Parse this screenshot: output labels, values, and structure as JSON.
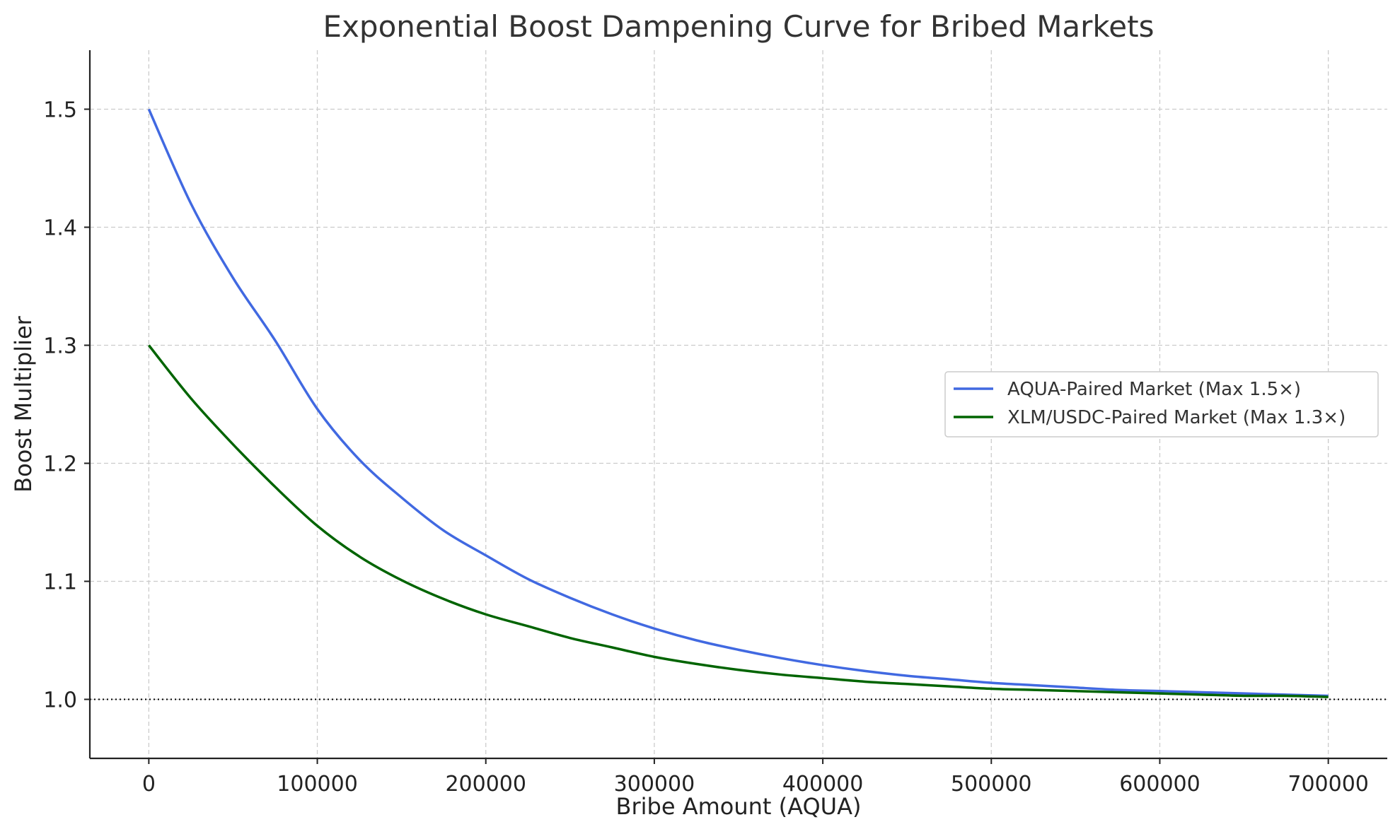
{
  "chart_data": {
    "type": "line",
    "title": "Exponential Boost Dampening Curve for Bribed Markets",
    "xlabel": "Bribe Amount (AQUA)",
    "ylabel": "Boost Multiplier",
    "xlim": [
      -35000,
      735000
    ],
    "ylim": [
      0.95,
      1.55
    ],
    "xticks": [
      0,
      100000,
      200000,
      300000,
      400000,
      500000,
      600000,
      700000
    ],
    "xtick_labels": [
      "0",
      "100000",
      "200000",
      "300000",
      "400000",
      "500000",
      "600000",
      "700000"
    ],
    "yticks": [
      1.0,
      1.1,
      1.2,
      1.3,
      1.4,
      1.5
    ],
    "ytick_labels": [
      "1.0",
      "1.1",
      "1.2",
      "1.3",
      "1.4",
      "1.5"
    ],
    "grid": true,
    "legend_position": "center-right",
    "reference_line": {
      "y": 1.0,
      "style": "dotted",
      "color": "#000000"
    },
    "x": [
      0,
      25000,
      50000,
      75000,
      100000,
      125000,
      150000,
      175000,
      200000,
      225000,
      250000,
      275000,
      300000,
      325000,
      350000,
      375000,
      400000,
      425000,
      450000,
      475000,
      500000,
      525000,
      550000,
      575000,
      600000,
      625000,
      650000,
      675000,
      700000
    ],
    "series": [
      {
        "name": "AQUA-Paired Market (Max 1.5×)",
        "color": "#4169e1",
        "values": [
          1.5,
          1.42,
          1.357,
          1.304,
          1.246,
          1.203,
          1.171,
          1.143,
          1.122,
          1.102,
          1.086,
          1.072,
          1.06,
          1.05,
          1.042,
          1.035,
          1.029,
          1.024,
          1.02,
          1.017,
          1.014,
          1.012,
          1.01,
          1.008,
          1.007,
          1.006,
          1.005,
          1.004,
          1.003
        ]
      },
      {
        "name": "XLM/USDC-Paired Market (Max 1.3×)",
        "color": "#006400",
        "values": [
          1.3,
          1.255,
          1.216,
          1.18,
          1.147,
          1.121,
          1.101,
          1.085,
          1.072,
          1.062,
          1.052,
          1.044,
          1.036,
          1.03,
          1.025,
          1.021,
          1.018,
          1.015,
          1.013,
          1.011,
          1.009,
          1.008,
          1.007,
          1.006,
          1.005,
          1.004,
          1.003,
          1.003,
          1.002
        ]
      }
    ]
  }
}
